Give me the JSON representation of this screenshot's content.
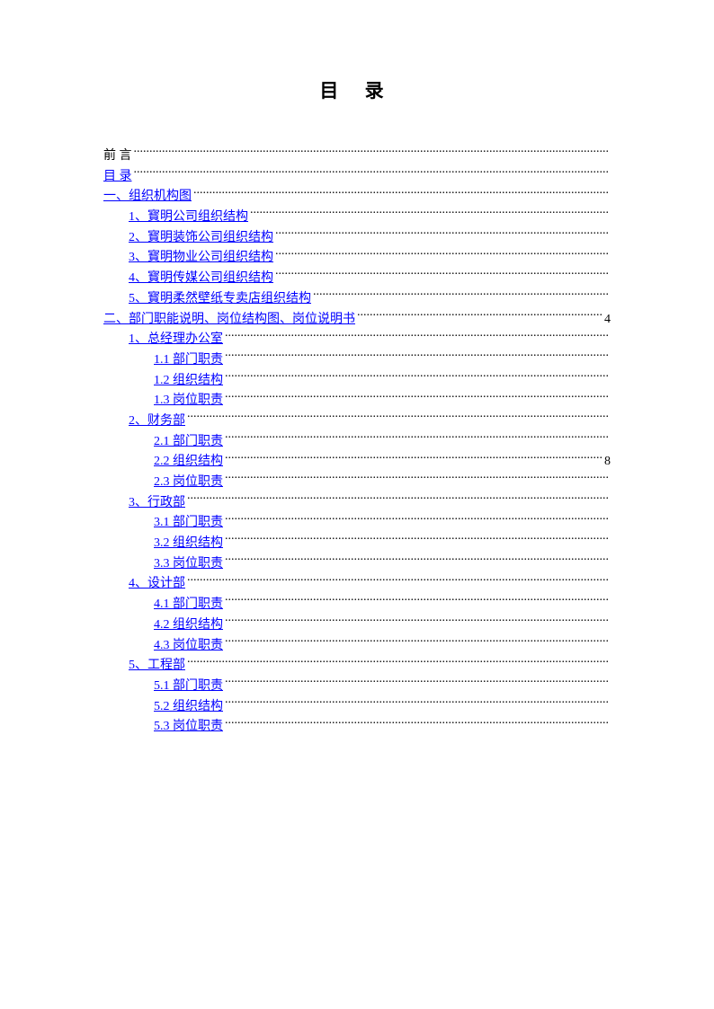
{
  "title": "目 录",
  "colors": {
    "link": "#0000ff",
    "text": "#000000",
    "background": "#ffffff"
  },
  "font": {
    "family": "SimSun",
    "title_size": 21,
    "body_size": 14
  },
  "toc_entries": [
    {
      "text": "前  言",
      "indent": 0,
      "is_link": false,
      "page": ""
    },
    {
      "text": "目  录",
      "indent": 0,
      "is_link": true,
      "page": ""
    },
    {
      "text": "一、组织机构图",
      "indent": 0,
      "is_link": true,
      "page": ""
    },
    {
      "text": "1、寳明公司组织结构",
      "indent": 1,
      "is_link": true,
      "page": ""
    },
    {
      "text": "2、寳明装饰公司组织结构",
      "indent": 1,
      "is_link": true,
      "page": ""
    },
    {
      "text": "3、寳明物业公司组织结构",
      "indent": 1,
      "is_link": true,
      "page": ""
    },
    {
      "text": "4、寳明传媒公司组织结构",
      "indent": 1,
      "is_link": true,
      "page": ""
    },
    {
      "text": "5、寳明柔然壁纸专卖店组织结构",
      "indent": 1,
      "is_link": true,
      "page": ""
    },
    {
      "text": "二、部门职能说明、岗位结构图、岗位说明书",
      "indent": 0,
      "is_link": true,
      "page": "4"
    },
    {
      "text": "1、总经理办公室",
      "indent": 1,
      "is_link": true,
      "page": ""
    },
    {
      "text": "1.1 部门职责",
      "indent": 2,
      "is_link": true,
      "page": ""
    },
    {
      "text": "1.2 组织结构",
      "indent": 2,
      "is_link": true,
      "page": ""
    },
    {
      "text": "1.3 岗位职责",
      "indent": 2,
      "is_link": true,
      "page": ""
    },
    {
      "text": "2、财务部",
      "indent": 1,
      "is_link": true,
      "page": ""
    },
    {
      "text": "2.1 部门职责",
      "indent": 2,
      "is_link": true,
      "page": ""
    },
    {
      "text": "2.2 组织结构",
      "indent": 2,
      "is_link": true,
      "page": "8"
    },
    {
      "text": "2.3 岗位职责",
      "indent": 2,
      "is_link": true,
      "page": ""
    },
    {
      "text": "3、行政部",
      "indent": 1,
      "is_link": true,
      "page": ""
    },
    {
      "text": "3.1 部门职责",
      "indent": 2,
      "is_link": true,
      "page": ""
    },
    {
      "text": "3.2 组织结构",
      "indent": 2,
      "is_link": true,
      "page": ""
    },
    {
      "text": "3.3 岗位职责",
      "indent": 2,
      "is_link": true,
      "page": ""
    },
    {
      "text": "4、设计部",
      "indent": 1,
      "is_link": true,
      "page": ""
    },
    {
      "text": "4.1 部门职责",
      "indent": 2,
      "is_link": true,
      "page": ""
    },
    {
      "text": "4.2 组织结构",
      "indent": 2,
      "is_link": true,
      "page": ""
    },
    {
      "text": "4.3 岗位职责",
      "indent": 2,
      "is_link": true,
      "page": ""
    },
    {
      "text": "5、工程部",
      "indent": 1,
      "is_link": true,
      "page": ""
    },
    {
      "text": "5.1 部门职责",
      "indent": 2,
      "is_link": true,
      "page": ""
    },
    {
      "text": "5.2 组织结构",
      "indent": 2,
      "is_link": true,
      "page": ""
    },
    {
      "text": "5.3 岗位职责",
      "indent": 2,
      "is_link": true,
      "page": ""
    }
  ]
}
